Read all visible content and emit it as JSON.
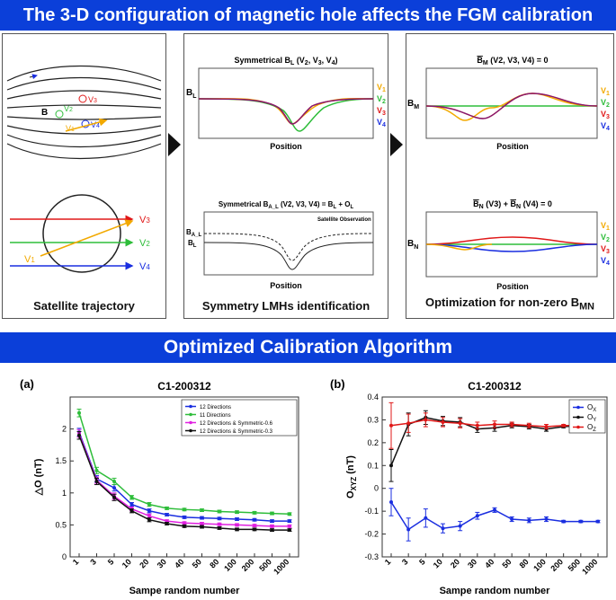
{
  "header_title": "The 3-D configuration of magnetic hole affects the FGM calibration",
  "section_title": "Optimized Calibration Algorithm",
  "panels": {
    "trajectory": {
      "caption": "Satellite trajectory",
      "labels": {
        "v1": "V",
        "v1_sub": "1",
        "v2": "V",
        "v2_sub": "2",
        "v3": "V",
        "v3_sub": "3",
        "v4": "V",
        "v4_sub": "4",
        "B": "B"
      }
    },
    "symmetry": {
      "caption": "Symmetry LMHs identification",
      "top_title": "Symmetrical B",
      "top_title_sub": "L",
      "top_title_rest": " (V",
      "top_args": [
        "2",
        "3",
        "4"
      ],
      "top_ylabel": "B",
      "top_ylabel_sub": "L",
      "xlabel": "Position",
      "bottom_title": "Symmetrical B",
      "bottom_title_sub": "A_L",
      "bottom_title_rest": " (V2, V3, V4) = B",
      "bottom_title_sub2": "L",
      "bottom_title_end": " + O",
      "bottom_title_sub3": "L",
      "bottom_ylabel1": "B",
      "bottom_ylabel1_sub": "A_L",
      "bottom_ylabel2": "B",
      "bottom_ylabel2_sub": "L",
      "annotation": "Satellite Observation"
    },
    "optimization": {
      "caption": "Optimization for non-zero B",
      "caption_sub": "MN",
      "top_title": "B",
      "top_title_sub": "M",
      "top_title_rest": "  (V2, V3, V4) = 0",
      "top_ylabel": "B",
      "top_ylabel_sub": "M",
      "bottom_title_a": "B",
      "bottom_title_a_sub": "N",
      "bottom_title_mid": "  (V3) + ",
      "bottom_title_b": "B",
      "bottom_title_b_sub": "N",
      "bottom_title_end": "  (V4) = 0",
      "bottom_ylabel": "B",
      "bottom_ylabel_sub": "N",
      "xlabel": "Position"
    },
    "legend": [
      {
        "label": "V",
        "sub": "1",
        "color": "#f2a900"
      },
      {
        "label": "V",
        "sub": "2",
        "color": "#2ebd3a"
      },
      {
        "label": "V",
        "sub": "3",
        "color": "#e01818"
      },
      {
        "label": "V",
        "sub": "4",
        "color": "#1a2ee0"
      }
    ]
  },
  "chart_data": [
    {
      "type": "line",
      "panel_label": "(a)",
      "title": "C1-200312",
      "xlabel": "Sampe random number",
      "ylabel": "△O (nT)",
      "categories": [
        "1",
        "3",
        "5",
        "10",
        "20",
        "30",
        "40",
        "50",
        "80",
        "100",
        "200",
        "500",
        "1000"
      ],
      "ylim": [
        0,
        2.5
      ],
      "yticks": [
        "0",
        "0.5",
        "1",
        "1.5",
        "2"
      ],
      "ytick_values": [
        0,
        0.5,
        1,
        1.5,
        2
      ],
      "legend_position": "top-right",
      "series": [
        {
          "name": "12 Directions",
          "color": "#1a2ee0",
          "values": [
            1.95,
            1.22,
            1.08,
            0.82,
            0.72,
            0.66,
            0.62,
            0.61,
            0.6,
            0.59,
            0.58,
            0.56,
            0.56
          ],
          "errors": [
            0.06,
            0.05,
            0.05,
            0.03,
            0.03,
            0.02,
            0.02,
            0.02,
            0.02,
            0.02,
            0.02,
            0.02,
            0.02
          ]
        },
        {
          "name": "11 Directions",
          "color": "#2ebd3a",
          "values": [
            2.25,
            1.35,
            1.18,
            0.93,
            0.82,
            0.76,
            0.74,
            0.73,
            0.71,
            0.7,
            0.69,
            0.68,
            0.67
          ],
          "errors": [
            0.06,
            0.05,
            0.05,
            0.03,
            0.03,
            0.02,
            0.02,
            0.02,
            0.02,
            0.02,
            0.02,
            0.02,
            0.02
          ]
        },
        {
          "name": "12 Directions & Symmetric-0.6",
          "color": "#e020e0",
          "values": [
            1.93,
            1.2,
            0.95,
            0.75,
            0.64,
            0.56,
            0.53,
            0.52,
            0.51,
            0.5,
            0.49,
            0.48,
            0.48
          ],
          "errors": [
            0.06,
            0.05,
            0.05,
            0.03,
            0.03,
            0.02,
            0.02,
            0.02,
            0.02,
            0.02,
            0.02,
            0.02,
            0.02
          ]
        },
        {
          "name": "12 Directions & Symmetric-0.3",
          "color": "#111111",
          "values": [
            1.9,
            1.18,
            0.93,
            0.72,
            0.58,
            0.52,
            0.48,
            0.47,
            0.45,
            0.43,
            0.43,
            0.42,
            0.42
          ],
          "errors": [
            0.06,
            0.05,
            0.05,
            0.03,
            0.03,
            0.02,
            0.02,
            0.02,
            0.02,
            0.02,
            0.02,
            0.02,
            0.02
          ]
        }
      ]
    },
    {
      "type": "line",
      "panel_label": "(b)",
      "title": "C1-200312",
      "xlabel": "Sampe random number",
      "ylabel": "O",
      "ylabel_sub": "XYZ",
      "ylabel_end": " (nT)",
      "categories": [
        "1",
        "3",
        "5",
        "10",
        "20",
        "30",
        "40",
        "50",
        "80",
        "100",
        "200",
        "500",
        "1000"
      ],
      "ylim": [
        -0.3,
        0.4
      ],
      "yticks": [
        "-0.3",
        "-0.2",
        "-0.1",
        "0",
        "0.1",
        "0.2",
        "0.3",
        "0.4"
      ],
      "ytick_values": [
        -0.3,
        -0.2,
        -0.1,
        0,
        0.1,
        0.2,
        0.3,
        0.4
      ],
      "legend_position": "top-right",
      "series": [
        {
          "name": "O",
          "sub": "X",
          "color": "#1a2ee0",
          "values": [
            -0.06,
            -0.18,
            -0.13,
            -0.175,
            -0.165,
            -0.12,
            -0.095,
            -0.135,
            -0.14,
            -0.135,
            -0.145,
            -0.145,
            -0.145
          ],
          "errors": [
            0.06,
            0.05,
            0.04,
            0.02,
            0.02,
            0.015,
            0.01,
            0.01,
            0.01,
            0.01,
            0.005,
            0.005,
            0.005
          ]
        },
        {
          "name": "O",
          "sub": "Y",
          "color": "#111111",
          "values": [
            0.1,
            0.28,
            0.31,
            0.295,
            0.29,
            0.26,
            0.265,
            0.275,
            0.27,
            0.26,
            0.27,
            0.275,
            0.275
          ],
          "errors": [
            0.07,
            0.05,
            0.03,
            0.02,
            0.02,
            0.015,
            0.015,
            0.01,
            0.01,
            0.01,
            0.005,
            0.005,
            0.005
          ]
        },
        {
          "name": "O",
          "sub": "Z",
          "color": "#e01818",
          "values": [
            0.275,
            0.285,
            0.3,
            0.29,
            0.285,
            0.275,
            0.28,
            0.28,
            0.275,
            0.27,
            0.275,
            0.275,
            0.275
          ],
          "errors": [
            0.1,
            0.04,
            0.03,
            0.02,
            0.02,
            0.015,
            0.015,
            0.01,
            0.01,
            0.01,
            0.005,
            0.005,
            0.005
          ]
        }
      ]
    }
  ]
}
